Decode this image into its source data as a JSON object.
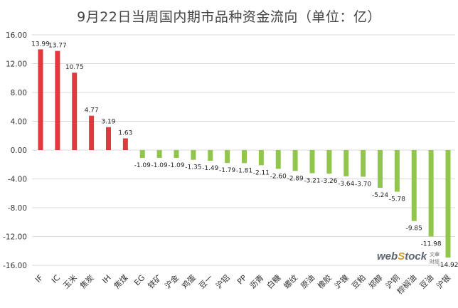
{
  "chart_data": {
    "type": "bar",
    "title": "9月22日当周国内期市品种资金流向（单位：亿）",
    "categories": [
      "IF",
      "IC",
      "玉米",
      "焦炭",
      "IH",
      "焦煤",
      "EG",
      "铁矿",
      "沪金",
      "鸡蛋",
      "豆一",
      "沪铝",
      "PP",
      "沥青",
      "白糖",
      "螺纹",
      "原油",
      "橡胶",
      "沪镍",
      "豆粕",
      "郑醇",
      "沪铜",
      "棕榈油",
      "豆油",
      "沪银"
    ],
    "values": [
      13.99,
      13.77,
      10.75,
      4.77,
      3.19,
      1.63,
      -1.09,
      -1.09,
      -1.09,
      -1.35,
      -1.49,
      -1.79,
      -1.81,
      -2.11,
      -2.6,
      -2.89,
      -3.21,
      -3.26,
      -3.64,
      -3.7,
      -5.24,
      -5.78,
      -9.85,
      -11.98,
      -14.92
    ],
    "value_labels": [
      "13.99",
      "13.77",
      "10.75",
      "4.77",
      "3.19",
      "1.63",
      "-1.09",
      "-1.09",
      "-1.09",
      "-1.35",
      "-1.49",
      "-1.79",
      "-1.81",
      "-2.11",
      "-2.60",
      "-2.89",
      "-3.21",
      "-3.26",
      "-3.64",
      "-3.70",
      "-5.24",
      "-5.78",
      "-9.85",
      "-11.98",
      "-14.92"
    ],
    "y_ticks": [
      "16.00",
      "12.00",
      "8.00",
      "4.00",
      "0.00",
      "-4.00",
      "-8.00",
      "-12.00",
      "-16.00"
    ],
    "ylim": [
      -16,
      16
    ],
    "grid": true,
    "colors": {
      "positive": "#e0393e",
      "negative": "#92c54b",
      "grid": "#d9d9d9",
      "axis_text": "#333333"
    }
  },
  "watermark": {
    "logo": "webstock",
    "cn": "文華財經"
  }
}
